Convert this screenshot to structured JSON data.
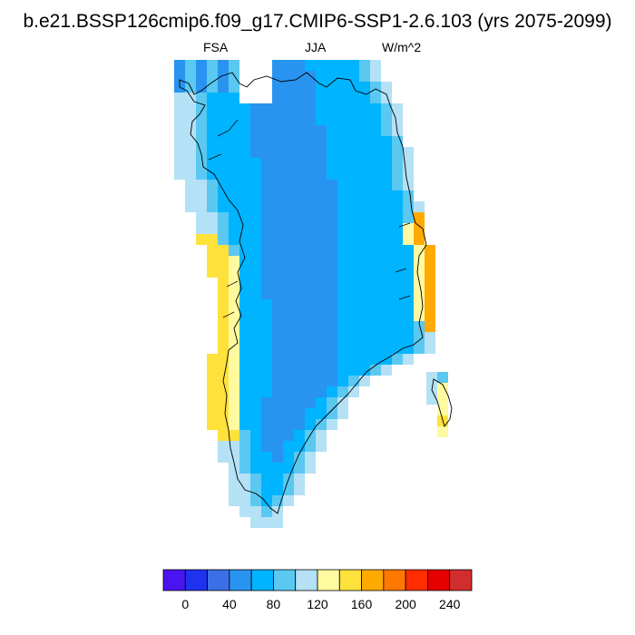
{
  "title": "b.e21.BSSP126cmip6.f09_g17.CMIP6-SSP1-2.6.103 (yrs 2075-2099)",
  "subtitle_left": "FSA",
  "subtitle_center": "JJA",
  "subtitle_right": "W/m^2",
  "colorbar": {
    "colors": [
      "#4a14f0",
      "#1e32f0",
      "#3c6ee6",
      "#2894f0",
      "#00b4ff",
      "#5ac8f0",
      "#b4e1f5",
      "#fffaa0",
      "#ffe13c",
      "#ffaa00",
      "#ff7800",
      "#ff2d00",
      "#e60000",
      "#d22d2d"
    ],
    "tick_labels": [
      "0",
      "40",
      "80",
      "120",
      "160",
      "200",
      "240"
    ]
  },
  "chart_data": {
    "type": "heatmap",
    "region": "Greenland",
    "variable": "FSA",
    "season": "JJA",
    "units": "W/m^2",
    "range": [
      0,
      240
    ],
    "levels": [
      0,
      20,
      40,
      60,
      80,
      100,
      120,
      140,
      160,
      180,
      200,
      220,
      240
    ],
    "pattern": "interior ice sheet 40-80; coastal margins 80-160; peak coastal values ~170-180"
  }
}
